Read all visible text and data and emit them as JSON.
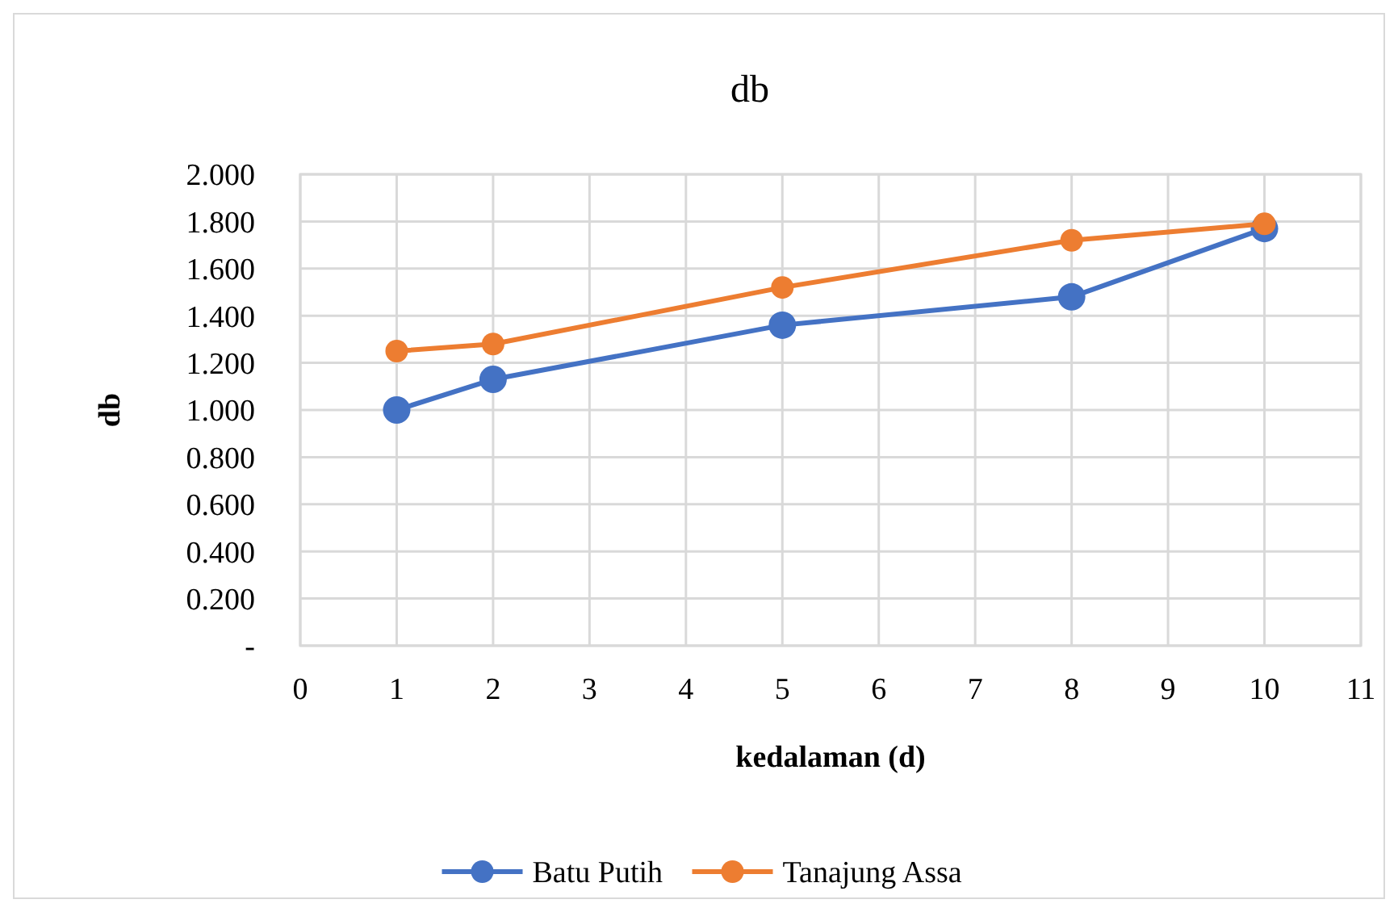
{
  "chart_data": {
    "type": "line",
    "title": "db",
    "xlabel": "kedalaman (d)",
    "ylabel": "db",
    "xlim": [
      0,
      11
    ],
    "xticks": [
      0,
      1,
      2,
      3,
      4,
      5,
      6,
      7,
      8,
      9,
      10,
      11
    ],
    "ylim": [
      0,
      2
    ],
    "yticks": [
      {
        "value": 0,
        "label": "-"
      },
      {
        "value": 0.2,
        "label": "0.200"
      },
      {
        "value": 0.4,
        "label": "0.400"
      },
      {
        "value": 0.6,
        "label": "0.600"
      },
      {
        "value": 0.8,
        "label": "0.800"
      },
      {
        "value": 1,
        "label": "1.000"
      },
      {
        "value": 1.2,
        "label": "1.200"
      },
      {
        "value": 1.4,
        "label": "1.400"
      },
      {
        "value": 1.6,
        "label": "1.600"
      },
      {
        "value": 1.8,
        "label": "1.800"
      },
      {
        "value": 2,
        "label": "2.000"
      }
    ],
    "x": [
      1,
      2,
      5,
      8,
      10
    ],
    "series": [
      {
        "name": "Batu Putih",
        "color": "#4472c4",
        "values": [
          1.0,
          1.13,
          1.36,
          1.48,
          1.77
        ]
      },
      {
        "name": "Tanajung Assa",
        "color": "#ed7d31",
        "values": [
          1.25,
          1.28,
          1.52,
          1.72,
          1.79
        ]
      }
    ],
    "grid": true,
    "legend": "bottom",
    "marker": "circle",
    "line_style": "solid"
  }
}
